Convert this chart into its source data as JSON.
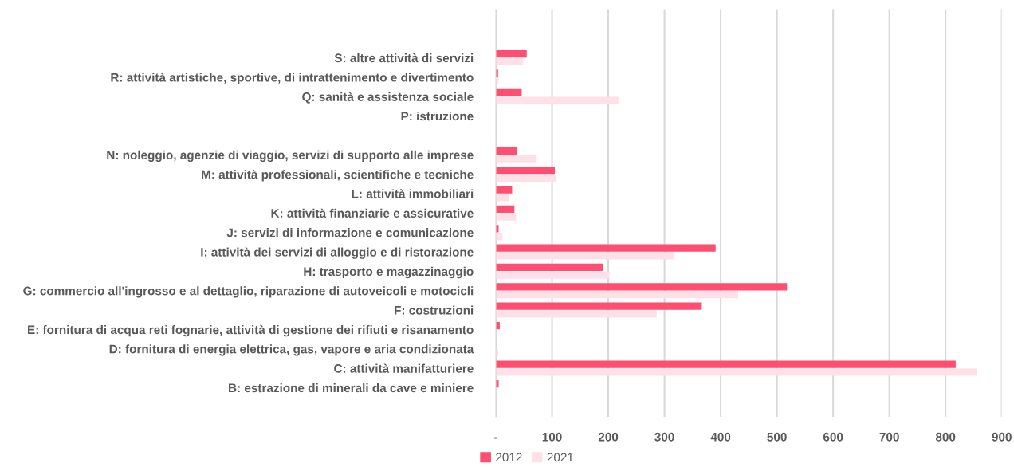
{
  "chart_data": {
    "type": "bar",
    "orientation": "horizontal",
    "categories": [
      null,
      null,
      "S: altre attività di servizi",
      "R: attività artistiche, sportive, di intrattenimento e divertimento",
      "Q: sanità e assistenza sociale",
      "P: istruzione",
      null,
      "N: noleggio, agenzie di viaggio, servizi di supporto alle imprese",
      "M: attività professionali, scientifiche e tecniche",
      "L: attività immobiliari",
      "K: attività finanziarie e assicurative",
      "J: servizi di informazione e comunicazione",
      "I: attività dei servizi di alloggio e di ristorazione",
      "H: trasporto e magazzinaggio",
      "G: commercio all'ingrosso e al dettaglio, riparazione di autoveicoli e motocicli",
      "F: costruzioni",
      "E: fornitura di acqua reti fognarie, attività di gestione dei rifiuti e risanamento",
      "D: fornitura di energia elettrica, gas, vapore e aria condizionata",
      "C: attività manifatturiere",
      "B: estrazione di minerali da cave e miniere",
      null
    ],
    "series": [
      {
        "name": "2012",
        "color": "#fe4f72",
        "values": [
          null,
          null,
          55,
          4,
          46,
          0,
          null,
          38,
          105,
          29,
          33,
          5,
          391,
          191,
          518,
          365,
          7,
          0,
          818,
          5,
          null
        ]
      },
      {
        "name": "2021",
        "color": "#fde0e8",
        "values": [
          null,
          null,
          48,
          5,
          218,
          null,
          null,
          73,
          108,
          23,
          36,
          12,
          317,
          202,
          431,
          286,
          null,
          4,
          856,
          0,
          null
        ]
      }
    ],
    "xlim": [
      0,
      900
    ],
    "xticks": [
      {
        "value": 0,
        "label": "-"
      },
      100,
      200,
      300,
      400,
      500,
      600,
      700,
      800,
      900
    ],
    "grid": "x",
    "legend": "bottom"
  }
}
